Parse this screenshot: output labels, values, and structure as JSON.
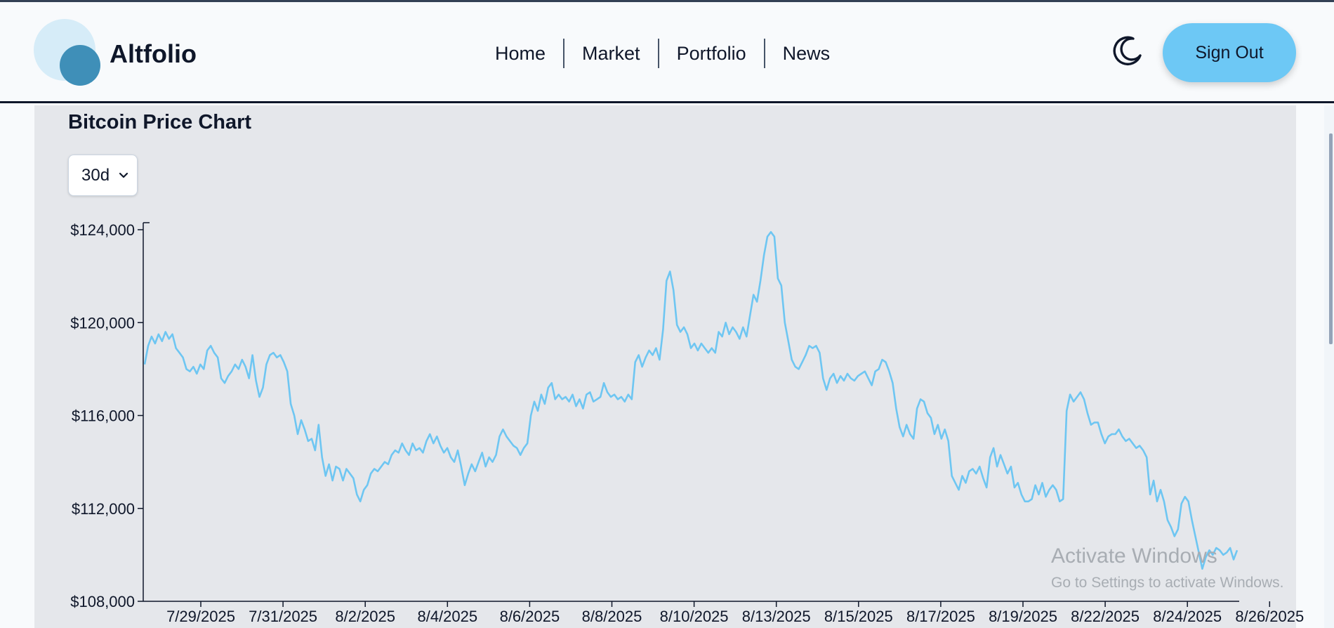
{
  "header": {
    "brand": "Altfolio",
    "nav": [
      "Home",
      "Market",
      "Portfolio",
      "News"
    ],
    "theme_icon": "moon-icon",
    "sign_out_label": "Sign Out"
  },
  "chart_section": {
    "title": "Bitcoin Price Chart",
    "range_selected": "30d"
  },
  "colors": {
    "line": "#6ec6f2",
    "accent": "#6dc8f5",
    "logo_dark": "#3f8fb8",
    "logo_light": "#d6ecf8",
    "card_bg": "#e5e7eb"
  },
  "chart_data": {
    "type": "line",
    "title": "",
    "xlabel": "",
    "ylabel": "",
    "ylim": [
      108000,
      124000
    ],
    "y_ticks": [
      108000,
      112000,
      116000,
      120000,
      124000
    ],
    "y_tick_labels": [
      "$108,000",
      "$112,000",
      "$116,000",
      "$120,000",
      "$124,000"
    ],
    "x_tick_labels": [
      "7/29/2025",
      "7/31/2025",
      "8/2/2025",
      "8/4/2025",
      "8/6/2025",
      "8/8/2025",
      "8/10/2025",
      "8/13/2025",
      "8/15/2025",
      "8/17/2025",
      "8/19/2025",
      "8/22/2025",
      "8/24/2025",
      "8/26/2025"
    ],
    "series": [
      {
        "values": [
          118200,
          119000,
          119400,
          119100,
          119500,
          119200,
          119600,
          119300,
          119500,
          118900,
          118700,
          118500,
          118000,
          117900,
          118100,
          117800,
          118200,
          118000,
          118800,
          119000,
          118700,
          118500,
          117600,
          117400,
          117700,
          117900,
          118200,
          118000,
          118400,
          118100,
          117600,
          118600,
          117500,
          116800,
          117200,
          118200,
          118600,
          118700,
          118500,
          118600,
          118300,
          117900,
          116500,
          116000,
          115200,
          115800,
          115400,
          114900,
          115000,
          114500,
          115600,
          114200,
          113400,
          113900,
          113200,
          113800,
          113700,
          113200,
          113700,
          113500,
          113300,
          112600,
          112300,
          112800,
          113000,
          113500,
          113700,
          113600,
          113800,
          114000,
          113900,
          114300,
          114500,
          114400,
          114800,
          114500,
          114300,
          114800,
          114500,
          114600,
          114400,
          114900,
          115200,
          114800,
          115100,
          114700,
          114400,
          114600,
          114200,
          114000,
          114500,
          113800,
          113000,
          113500,
          113900,
          113600,
          114000,
          114400,
          113800,
          114200,
          114000,
          114300,
          115100,
          115400,
          115100,
          114900,
          114700,
          114600,
          114300,
          114600,
          114800,
          116000,
          116600,
          116200,
          116900,
          116500,
          117200,
          117400,
          116700,
          116900,
          116700,
          116800,
          116600,
          116900,
          116400,
          116700,
          116300,
          116900,
          117000,
          116600,
          116700,
          116800,
          117400,
          117000,
          116800,
          116900,
          116700,
          116800,
          116600,
          116900,
          116700,
          118300,
          118600,
          118100,
          118500,
          118800,
          118600,
          118900,
          118400,
          119700,
          121800,
          122200,
          121400,
          119900,
          119600,
          119800,
          119500,
          118900,
          119100,
          118800,
          119100,
          118900,
          118700,
          118900,
          118700,
          119600,
          119400,
          120000,
          119500,
          119800,
          119600,
          119300,
          119800,
          119400,
          120300,
          121200,
          120900,
          121800,
          122900,
          123700,
          123900,
          123700,
          121900,
          121600,
          120000,
          119200,
          118400,
          118100,
          118000,
          118300,
          118600,
          119000,
          118900,
          119000,
          118700,
          117600,
          117100,
          117600,
          117800,
          117400,
          117700,
          117500,
          117800,
          117600,
          117500,
          117700,
          117800,
          117900,
          117600,
          117300,
          117900,
          118000,
          118400,
          118300,
          117900,
          117400,
          116300,
          115500,
          115100,
          115600,
          115200,
          115000,
          116300,
          116700,
          116600,
          116100,
          115900,
          115200,
          115600,
          115000,
          115400,
          114900,
          113400,
          113100,
          112800,
          113400,
          113100,
          113600,
          113700,
          113500,
          113800,
          113300,
          112900,
          114200,
          114600,
          113800,
          114300,
          113900,
          113500,
          113800,
          112900,
          113100,
          112600,
          112300,
          112300,
          112400,
          113000,
          112600,
          113100,
          112500,
          112800,
          113000,
          112800,
          112300,
          112400,
          116200,
          116900,
          116600,
          116800,
          117000,
          116700,
          116100,
          115600,
          115700,
          115700,
          115200,
          114800,
          115100,
          115200,
          115200,
          115400,
          115100,
          114900,
          115000,
          114800,
          114600,
          114700,
          114500,
          114200,
          112600,
          113200,
          112300,
          112800,
          112300,
          111500,
          111200,
          110800,
          111100,
          112200,
          112500,
          112300,
          111500,
          110800,
          110100,
          109400,
          109900,
          110200,
          110000,
          110300,
          110200,
          110000,
          110100,
          110300,
          109800,
          110200
        ]
      }
    ]
  }
}
